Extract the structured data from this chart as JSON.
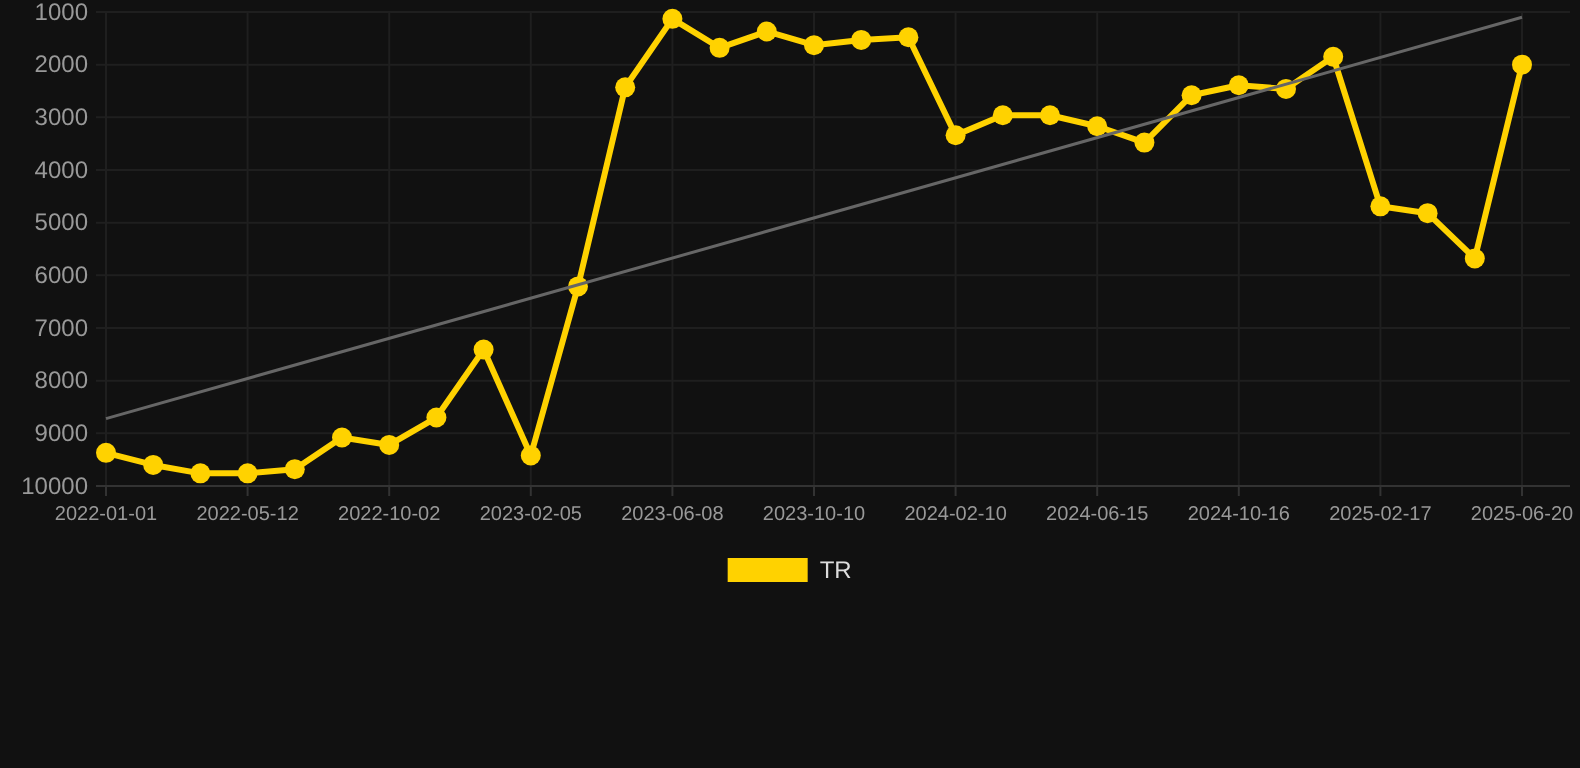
{
  "chart_data": {
    "type": "line",
    "categories": [
      "2022-01-01",
      null,
      null,
      "2022-05-12",
      null,
      null,
      "2022-10-02",
      null,
      null,
      "2023-02-05",
      null,
      null,
      "2023-06-08",
      null,
      null,
      "2023-10-10",
      null,
      null,
      "2024-02-10",
      null,
      null,
      "2024-06-15",
      null,
      null,
      "2024-10-16",
      null,
      null,
      "2025-02-17",
      null,
      null,
      "2025-06-20"
    ],
    "series": [
      {
        "name": "TR",
        "color": "#ffd200",
        "marker": "circle",
        "values": [
          9370,
          9600,
          9760,
          9760,
          9680,
          9080,
          9220,
          8700,
          7410,
          9420,
          6210,
          2430,
          1130,
          1680,
          1370,
          1630,
          1530,
          1480,
          3340,
          2960,
          2960,
          3170,
          3480,
          2580,
          2390,
          2460,
          1850,
          4690,
          4820,
          5680,
          2000
        ]
      },
      {
        "type": "line",
        "color": "#666666",
        "marker": "none",
        "values": [
          8720,
          null,
          null,
          null,
          null,
          null,
          null,
          null,
          null,
          null,
          null,
          null,
          null,
          null,
          null,
          null,
          null,
          null,
          null,
          null,
          null,
          null,
          null,
          null,
          null,
          null,
          null,
          null,
          null,
          null,
          1100
        ]
      }
    ],
    "ylim": [
      10000,
      1000
    ],
    "yticks": [
      1000,
      2000,
      3000,
      4000,
      5000,
      6000,
      7000,
      8000,
      9000,
      10000
    ],
    "grid": true,
    "legend": "bottom"
  }
}
